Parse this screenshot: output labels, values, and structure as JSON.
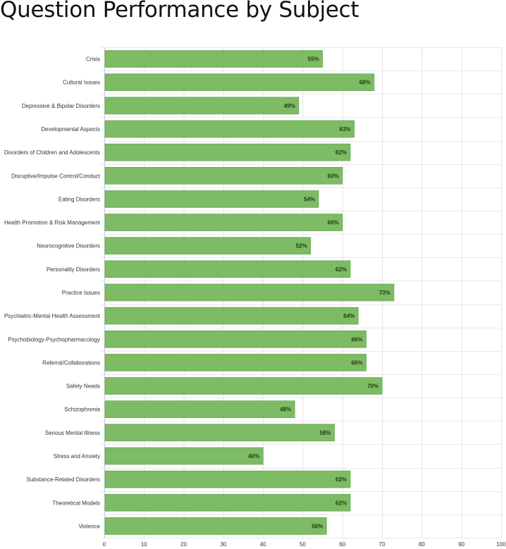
{
  "chart_data": {
    "type": "bar",
    "orientation": "horizontal",
    "title": "Question Performance by Subject",
    "xlabel": "",
    "ylabel": "",
    "xlim": [
      0,
      100
    ],
    "xticks": [
      0,
      10,
      20,
      30,
      40,
      50,
      60,
      70,
      80,
      90,
      100
    ],
    "grid": true,
    "legend": "none",
    "bar_color": "#7dbb65",
    "bar_border_color": "#6aa955",
    "categories": [
      "Crisis",
      "Cultural Issues",
      "Depressive & Bipolar Disorders",
      "Developmental Aspects",
      "Disorders of Children and Adolescents",
      "Disruptive/Impulse Control/Conduct",
      "Eating Disorders",
      "Health Promotion & Risk Management",
      "Neurocognitive Disorders",
      "Personality Disorders",
      "Practice Issues",
      "Psychiatric-Mental Health Assessment",
      "Psychobiology-Psychopharmacology",
      "Referral/Collaborations",
      "Safety Needs",
      "Schizophrenia",
      "Serious Mental Illness",
      "Stress and Anxiety",
      "Substance-Related Disorders",
      "Theoretical Models",
      "Violence"
    ],
    "values": [
      55,
      68,
      49,
      63,
      62,
      60,
      54,
      60,
      52,
      62,
      73,
      64,
      66,
      66,
      70,
      48,
      58,
      40,
      62,
      62,
      56
    ],
    "data_labels": [
      "55%",
      "68%",
      "49%",
      "63%",
      "62%",
      "60%",
      "54%",
      "60%",
      "52%",
      "62%",
      "73%",
      "64%",
      "66%",
      "66%",
      "70%",
      "48%",
      "58%",
      "40%",
      "62%",
      "62%",
      "56%"
    ]
  }
}
